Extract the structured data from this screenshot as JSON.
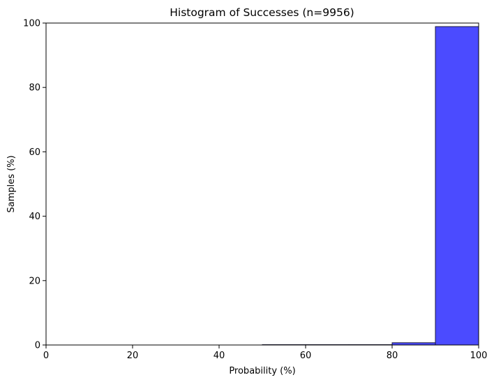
{
  "chart_data": {
    "type": "bar",
    "title": "Histogram of Successes (n=9956)",
    "xlabel": "Probability (%)",
    "ylabel": "Samples (%)",
    "xlim": [
      0,
      100
    ],
    "ylim": [
      0,
      100
    ],
    "xticks": [
      0,
      20,
      40,
      60,
      80,
      100
    ],
    "yticks": [
      0,
      20,
      40,
      60,
      80,
      100
    ],
    "bins": [
      {
        "start": 0,
        "end": 10,
        "value": 0
      },
      {
        "start": 10,
        "end": 20,
        "value": 0
      },
      {
        "start": 20,
        "end": 30,
        "value": 0
      },
      {
        "start": 30,
        "end": 40,
        "value": 0
      },
      {
        "start": 40,
        "end": 50,
        "value": 0
      },
      {
        "start": 50,
        "end": 60,
        "value": 0.1
      },
      {
        "start": 60,
        "end": 70,
        "value": 0.1
      },
      {
        "start": 70,
        "end": 80,
        "value": 0.1
      },
      {
        "start": 80,
        "end": 90,
        "value": 0.7
      },
      {
        "start": 90,
        "end": 100,
        "value": 98.9
      }
    ],
    "bar_color": "#4b4bff",
    "edge_color": "#1a1a3c",
    "grid": false,
    "legend": "none"
  }
}
